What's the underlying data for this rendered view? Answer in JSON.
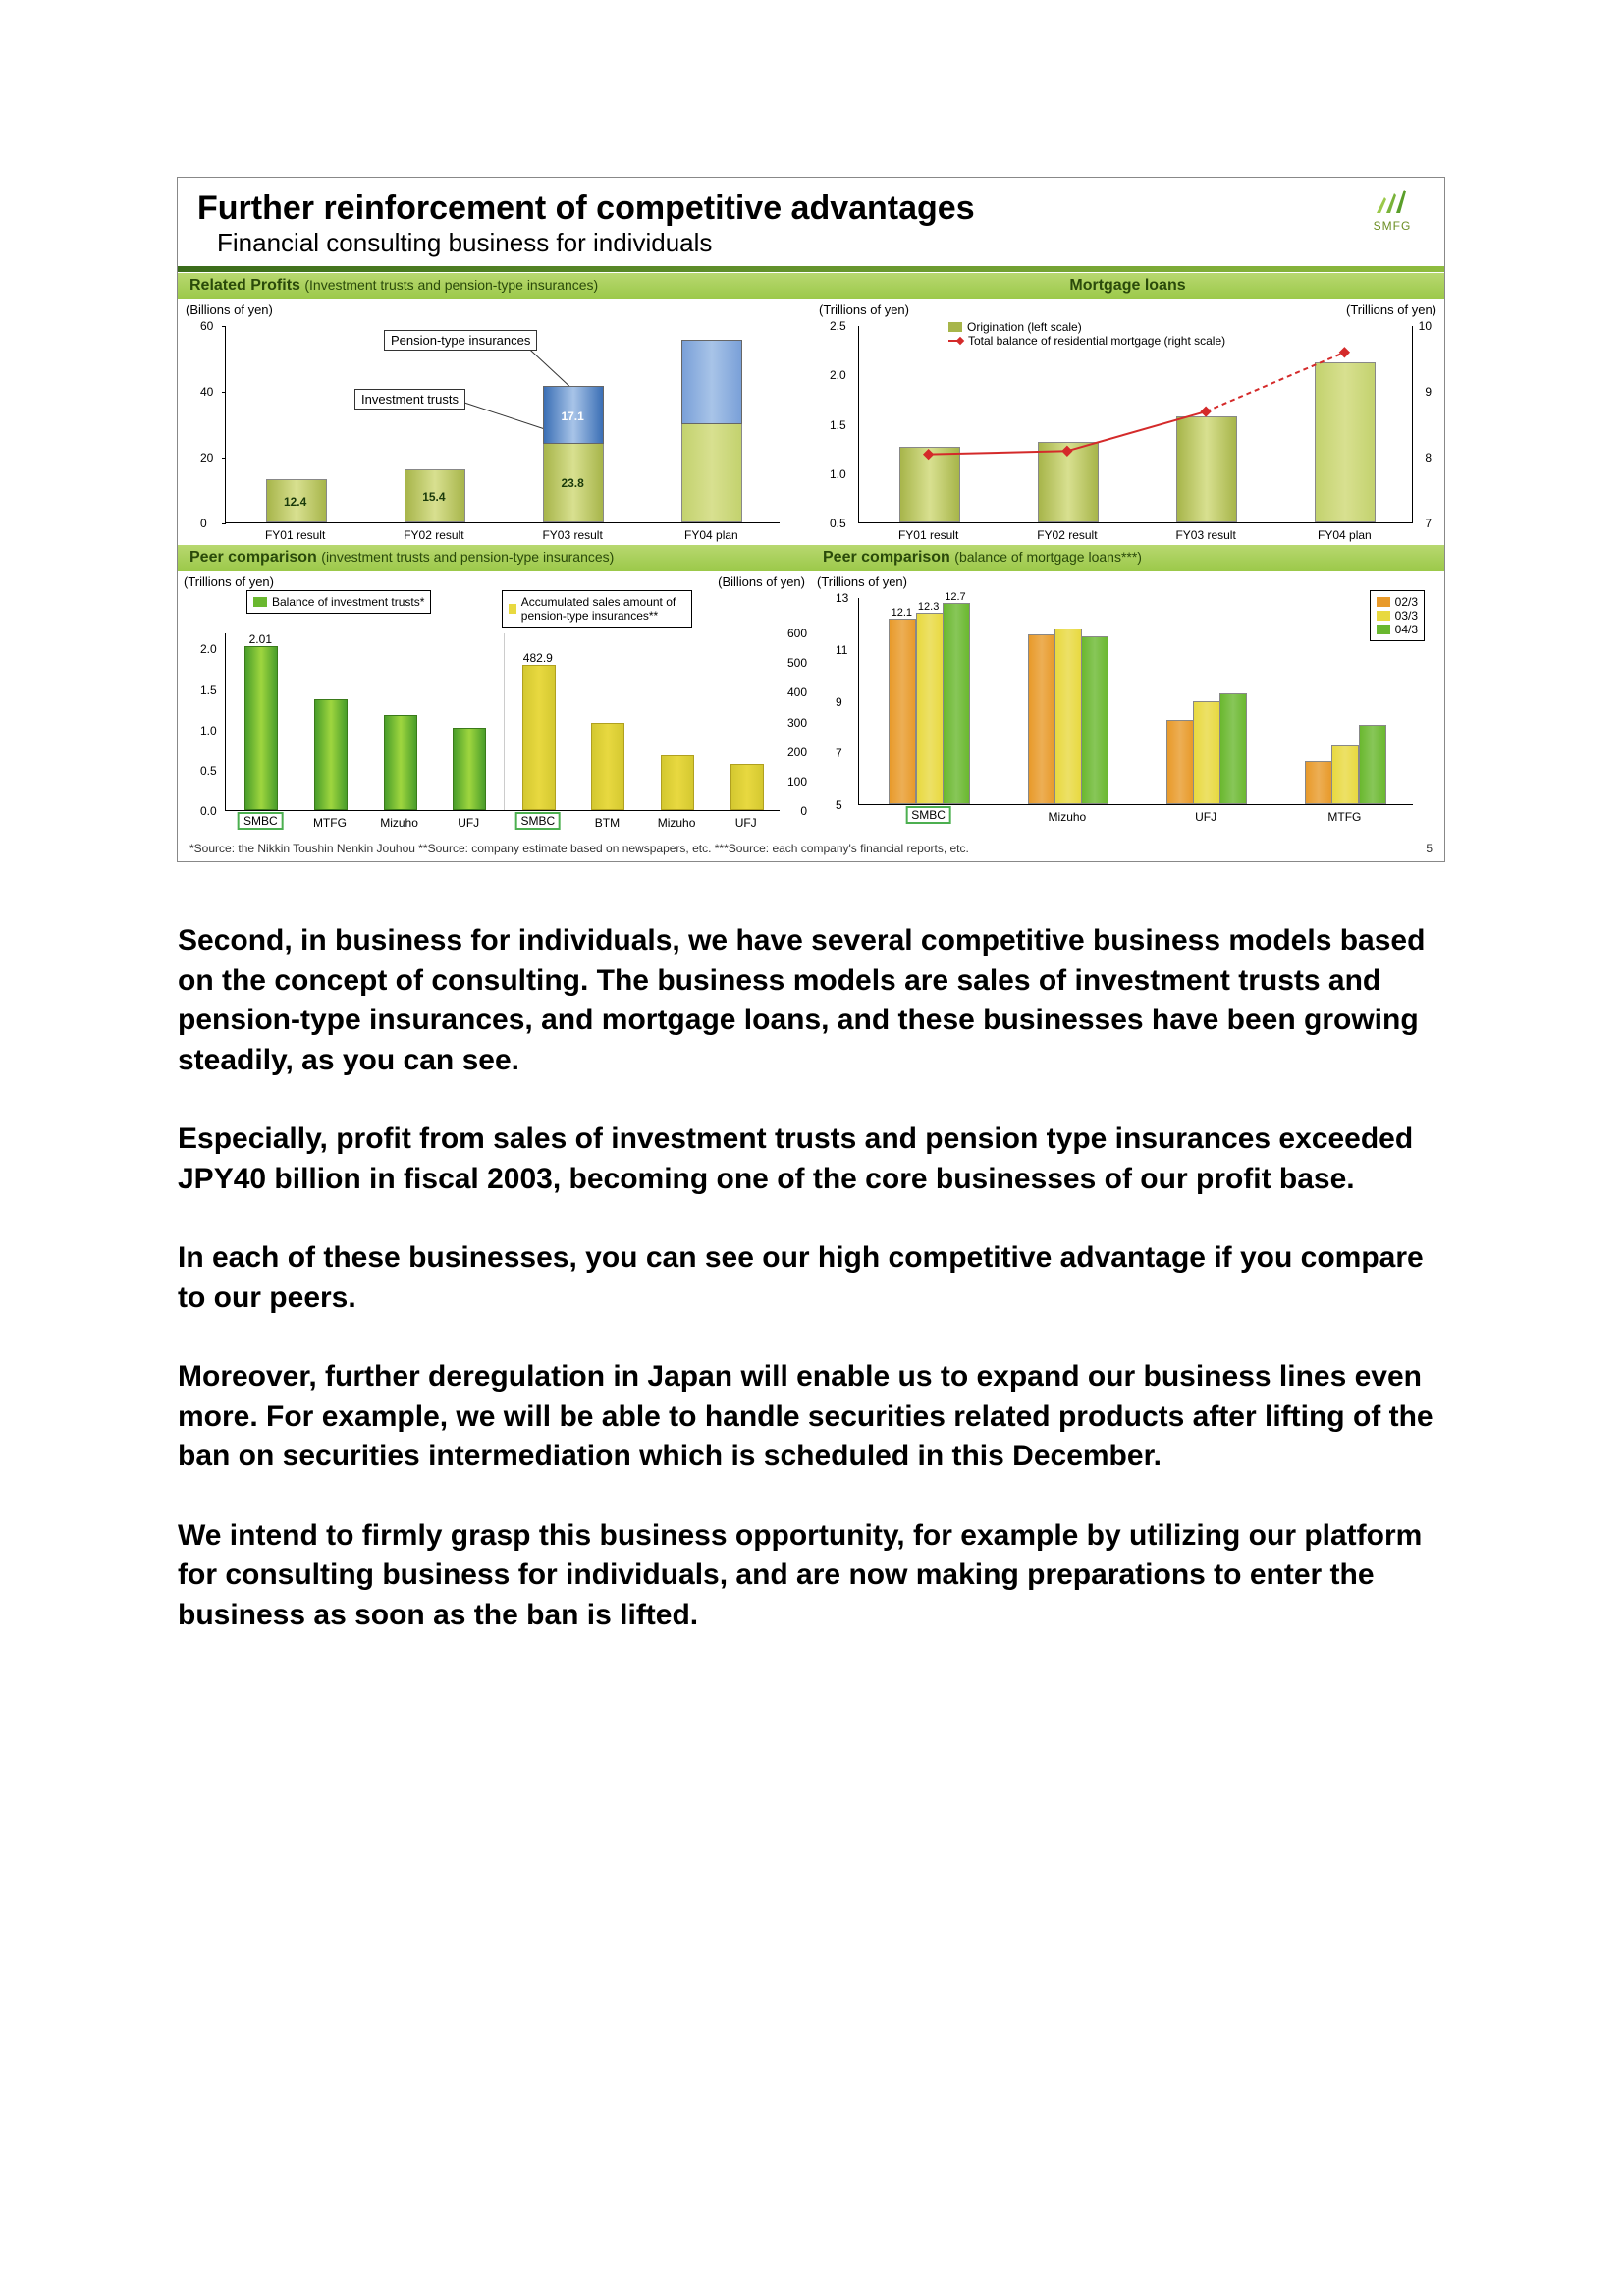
{
  "slide": {
    "title": "Further reinforcement of competitive advantages",
    "subtitle": "Financial consulting business for individuals",
    "logo_text": "SMFG",
    "page_number": "5",
    "footnote": "*Source: the Nikkin Toushin Nenkin Jouhou    **Source: company estimate based on newspapers, etc.    ***Source: each company's financial reports, etc."
  },
  "colors": {
    "bar_olive": "#a7b54a",
    "bar_olive_light": "#c3d26e",
    "bar_blue": "#3b6fb5",
    "line_red": "#d42a2a",
    "gradient_g1": "#3fa535",
    "gradient_g2": "#9fd63f",
    "gradient_g3": "#d0e070",
    "yellow1": "#e8d940",
    "yellow2": "#d4c830",
    "orange": "#e89a2a",
    "green_peer1": "#6ab82f",
    "green_peer2": "#4a9e2a"
  },
  "chart1": {
    "header": "Related Profits",
    "header_sub": "(Investment trusts and pension-type insurances)",
    "unit_left": "(Billions of yen)",
    "callout1": "Pension-type insurances",
    "callout2": "Investment trusts",
    "ymax": 60,
    "yticks": [
      0,
      20,
      40,
      60
    ],
    "categories": [
      "FY01 result",
      "FY02 result",
      "FY03 result",
      "FY04 plan"
    ],
    "inv_values": [
      12.4,
      15.4,
      23.8,
      30
    ],
    "pen_values": [
      0,
      0,
      17.1,
      25
    ],
    "labels_inv": [
      "12.4",
      "15.4",
      "23.8",
      ""
    ],
    "labels_pen": [
      "",
      "",
      "17.1",
      ""
    ]
  },
  "chart2": {
    "header": "Mortgage loans",
    "unit_left": "(Trillions of yen)",
    "unit_right": "(Trillions of yen)",
    "legend1": "Origination (left scale)",
    "legend2": "Total balance of residential mortgage (right scale)",
    "left_ymin": 0.5,
    "left_ymax": 2.5,
    "left_ticks": [
      0.5,
      1.0,
      1.5,
      2.0,
      2.5
    ],
    "right_ymin": 7,
    "right_ymax": 10,
    "right_ticks": [
      7,
      8,
      9,
      10
    ],
    "categories": [
      "FY01 result",
      "FY02 result",
      "FY03 result",
      "FY04 plan"
    ],
    "bar_values": [
      1.25,
      1.3,
      1.55,
      2.1
    ],
    "line_values": [
      8.05,
      8.1,
      8.7,
      9.6
    ],
    "line_dashed_from": 2
  },
  "chart3": {
    "header": "Peer comparison",
    "header_sub": "(investment trusts and pension-type insurances)",
    "unit_left": "(Trillions of yen)",
    "unit_right": "(Billions of yen)",
    "left_legend": "Balance of investment trusts*",
    "right_legend": "Accumulated sales amount of pension-type insurances**",
    "left_ticks": [
      0.0,
      0.5,
      1.0,
      1.5,
      2.0
    ],
    "left_ymax": 2.2,
    "right_ticks": [
      0,
      100,
      200,
      300,
      400,
      500,
      600
    ],
    "right_ymax": 600,
    "left_groups": [
      "SMBC",
      "MTFG",
      "Mizuho",
      "UFJ"
    ],
    "left_values": [
      2.01,
      1.35,
      1.15,
      1.0
    ],
    "left_label": "2.01",
    "right_groups": [
      "SMBC",
      "BTM",
      "Mizuho",
      "UFJ"
    ],
    "right_values": [
      482.9,
      290,
      180,
      150
    ],
    "right_label": "482.9",
    "boxed_left": "SMBC",
    "boxed_right": "SMBC"
  },
  "chart4": {
    "header": "Peer comparison",
    "header_sub": "(balance of mortgage loans***)",
    "unit_left": "(Trillions of yen)",
    "yticks": [
      5,
      7,
      9,
      11,
      13
    ],
    "ymax": 13,
    "groups": [
      "SMBC",
      "Mizuho",
      "UFJ",
      "MTFG"
    ],
    "series_labels": [
      "02/3",
      "03/3",
      "04/3"
    ],
    "values": [
      [
        12.1,
        12.3,
        12.7
      ],
      [
        11.5,
        11.7,
        11.4
      ],
      [
        8.2,
        8.9,
        9.2
      ],
      [
        6.6,
        7.2,
        8.0
      ]
    ],
    "top_labels": [
      "12.1",
      "12.3",
      "12.7"
    ],
    "boxed": "SMBC"
  },
  "body": {
    "p1": "Second, in business for individuals, we have several competitive business models based on the concept of consulting. The business models are sales of investment trusts and pension-type insurances, and mortgage loans, and these businesses have been growing steadily, as you can see.",
    "p2": "Especially, profit from sales of investment trusts and pension type insurances exceeded JPY40 billion in fiscal 2003,  becoming one of the core businesses of our profit base.",
    "p3": "In each of these businesses, you can see our high competitive advantage if you compare to our peers.",
    "p4": "Moreover, further deregulation in Japan will enable us to expand our business lines even more. For example, we will be able to handle securities related products after lifting of the ban on securities intermediation which is scheduled in this December.",
    "p5": "We intend to firmly grasp this business opportunity, for example by utilizing our platform for consulting business for individuals, and are now making preparations to enter the business as soon as the ban is lifted."
  }
}
